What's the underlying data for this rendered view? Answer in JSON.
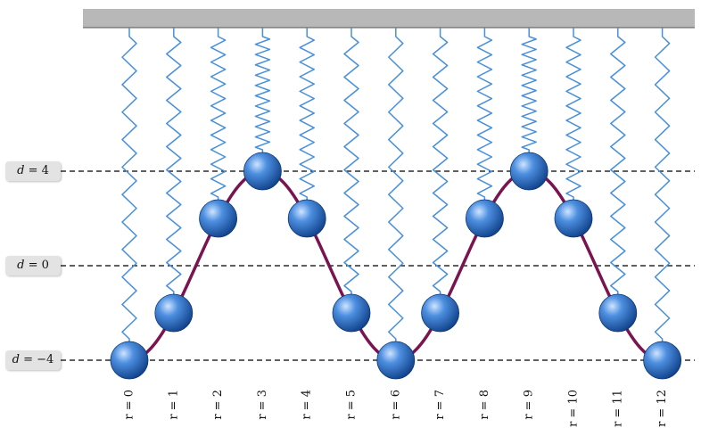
{
  "diagram": {
    "ceiling_color": "#b8b8b8",
    "spring_color": "#4a90d9",
    "ball_color": "#1f5fb0",
    "curve_color": "#7a1450",
    "guide_line_color": "#000000"
  },
  "levels": [
    {
      "var": "d",
      "sign": " = ",
      "value": "4",
      "d": 4
    },
    {
      "var": "d",
      "sign": " = ",
      "value": "0",
      "d": 0
    },
    {
      "var": "d",
      "sign": " = ",
      "value": "−4",
      "d": -4
    }
  ],
  "masses": [
    {
      "label": "r = 0",
      "t": 0,
      "d": -4
    },
    {
      "label": "r = 1",
      "t": 1,
      "d": -2
    },
    {
      "label": "r = 2",
      "t": 2,
      "d": 2
    },
    {
      "label": "r = 3",
      "t": 3,
      "d": 4
    },
    {
      "label": "r = 4",
      "t": 4,
      "d": 2
    },
    {
      "label": "r = 5",
      "t": 5,
      "d": -2
    },
    {
      "label": "r = 6",
      "t": 6,
      "d": -4
    },
    {
      "label": "r = 7",
      "t": 7,
      "d": -2
    },
    {
      "label": "r = 8",
      "t": 8,
      "d": 2
    },
    {
      "label": "r = 9",
      "t": 9,
      "d": 4
    },
    {
      "label": "r = 10",
      "t": 10,
      "d": 2
    },
    {
      "label": "r = 11",
      "t": 11,
      "d": -2
    },
    {
      "label": "r = 12",
      "t": 12,
      "d": -4
    }
  ]
}
